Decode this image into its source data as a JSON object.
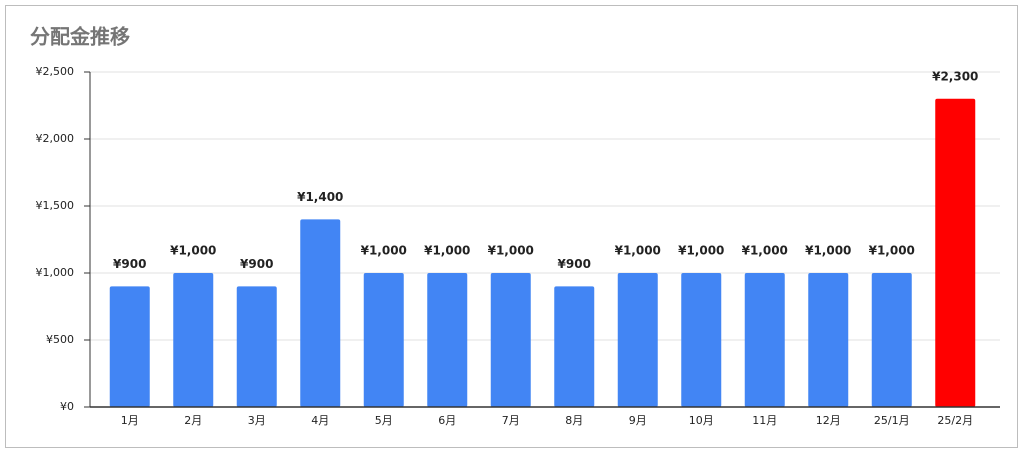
{
  "chart_data": {
    "type": "bar",
    "title": "分配金推移",
    "categories": [
      "1月",
      "2月",
      "3月",
      "4月",
      "5月",
      "6月",
      "7月",
      "8月",
      "9月",
      "10月",
      "11月",
      "12月",
      "25/1月",
      "25/2月"
    ],
    "values": [
      900,
      1000,
      900,
      1400,
      1000,
      1000,
      1000,
      900,
      1000,
      1000,
      1000,
      1000,
      1000,
      2300
    ],
    "value_labels": [
      "¥900",
      "¥1,000",
      "¥900",
      "¥1,400",
      "¥1,000",
      "¥1,000",
      "¥1,000",
      "¥900",
      "¥1,000",
      "¥1,000",
      "¥1,000",
      "¥1,000",
      "¥1,000",
      "¥2,300"
    ],
    "colors": [
      "#4285f4",
      "#4285f4",
      "#4285f4",
      "#4285f4",
      "#4285f4",
      "#4285f4",
      "#4285f4",
      "#4285f4",
      "#4285f4",
      "#4285f4",
      "#4285f4",
      "#4285f4",
      "#4285f4",
      "#ff0000"
    ],
    "ylim": [
      0,
      2500
    ],
    "yticks": [
      {
        "value": 0,
        "label": "¥0"
      },
      {
        "value": 500,
        "label": "¥500"
      },
      {
        "value": 1000,
        "label": "¥1,000"
      },
      {
        "value": 1500,
        "label": "¥1,500"
      },
      {
        "value": 2000,
        "label": "¥2,000"
      },
      {
        "value": 2500,
        "label": "¥2,500"
      }
    ],
    "grid": true
  }
}
